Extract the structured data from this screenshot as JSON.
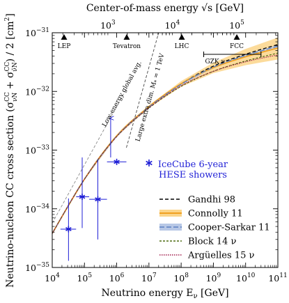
{
  "chart_data": {
    "type": "line",
    "xlabel": "Neutrino energy E",
    "xlabel_sub": "ν",
    "xlabel_unit": " [GeV]",
    "ylabel_pre": "Neutrino-nucleon CC cross section (σ",
    "ylabel_sup1": "CC",
    "ylabel_sub1": "νN",
    "ylabel_mid": " + σ",
    "ylabel_sup2": "CC",
    "ylabel_sub2": "ν̄N",
    "ylabel_post": ") / 2  [cm",
    "ylabel_exp": "2",
    "ylabel_close": "]",
    "top_xlabel_pre": "Center-of-mass energy ",
    "top_xlabel_sym": "√s",
    "top_xlabel_unit": " [GeV]",
    "x_scale": "log",
    "y_scale": "log",
    "xlim": [
      10000,
      100000000000
    ],
    "ylim": [
      1e-35,
      1e-31
    ],
    "x_ticks": [
      {
        "v": 10000,
        "m": "10",
        "e": "4"
      },
      {
        "v": 100000,
        "m": "10",
        "e": "5"
      },
      {
        "v": 1000000,
        "m": "10",
        "e": "6"
      },
      {
        "v": 10000000,
        "m": "10",
        "e": "7"
      },
      {
        "v": 100000000,
        "m": "10",
        "e": "8"
      },
      {
        "v": 1000000000,
        "m": "10",
        "e": "9"
      },
      {
        "v": 10000000000,
        "m": "10",
        "e": "10"
      },
      {
        "v": 100000000000,
        "m": "10",
        "e": "11"
      }
    ],
    "y_ticks": [
      {
        "v": 1e-35,
        "m": "10",
        "e": "−35"
      },
      {
        "v": 1e-34,
        "m": "10",
        "e": "−34"
      },
      {
        "v": 1e-33,
        "m": "10",
        "e": "−33"
      },
      {
        "v": 1e-32,
        "m": "10",
        "e": "−32"
      },
      {
        "v": 1e-31,
        "m": "10",
        "e": "−31"
      }
    ],
    "top_ticks": [
      {
        "sqrt_s": 1000,
        "m": "10",
        "e": "3"
      },
      {
        "sqrt_s": 10000,
        "m": "10",
        "e": "4"
      },
      {
        "sqrt_s": 100000,
        "m": "10",
        "e": "5"
      }
    ],
    "colliders": [
      {
        "name": "LEP",
        "sqrt_s": 209
      },
      {
        "name": "Tevatron",
        "sqrt_s": 1960
      },
      {
        "name": "LHC",
        "sqrt_s": 14000
      },
      {
        "name": "FCC",
        "sqrt_s": 100000
      }
    ],
    "gzk": {
      "label": "GZK ν",
      "e_min": 500000000,
      "e_max": 30000000000
    },
    "series": [
      {
        "name": "Gandhi 98",
        "color": "#000000",
        "dash": "5,3",
        "width": 1.3,
        "x": [
          10000,
          100000,
          1000000,
          10000000,
          100000000,
          1000000000,
          10000000000,
          100000000000
        ],
        "y": [
          3.8e-35,
          3.2e-34,
          1.75e-33,
          5.5e-33,
          1.35e-32,
          2.7e-32,
          4.3e-32,
          6.3e-32
        ]
      },
      {
        "name": "Connolly 11",
        "color": "#f0a020",
        "dash": "",
        "width": 1.8,
        "band_color": "#fbd58a",
        "x": [
          10000,
          100000,
          1000000,
          10000000,
          100000000,
          1000000000,
          10000000000,
          100000000000
        ],
        "y": [
          3.8e-35,
          3.2e-34,
          1.75e-33,
          5.5e-33,
          1.35e-32,
          2.55e-32,
          3.9e-32,
          5.5e-32
        ],
        "band_low": [
          3.7e-35,
          3.1e-34,
          1.7e-33,
          5.2e-33,
          1.2e-32,
          2.05e-32,
          2.8e-32,
          3.5e-32
        ],
        "band_high": [
          3.9e-35,
          3.3e-34,
          1.8e-33,
          5.8e-33,
          1.5e-32,
          3.1e-32,
          5.3e-32,
          8.3e-32
        ]
      },
      {
        "name": "Cooper-Sarkar 11",
        "color": "#5a7fc2",
        "dash": "7,3",
        "width": 1.3,
        "band_color": "#b8c8e6",
        "x": [
          10000,
          100000,
          1000000,
          10000000,
          100000000,
          1000000000,
          10000000000,
          100000000000
        ],
        "y": [
          3.8e-35,
          3.2e-34,
          1.72e-33,
          5.4e-33,
          1.32e-32,
          2.6e-32,
          4.1e-32,
          5.9e-32
        ],
        "band_low": [
          3.75e-35,
          3.15e-34,
          1.7e-33,
          5.3e-33,
          1.28e-32,
          2.5e-32,
          3.95e-32,
          5.6e-32
        ],
        "band_high": [
          3.85e-35,
          3.25e-34,
          1.74e-33,
          5.5e-33,
          1.36e-32,
          2.7e-32,
          4.3e-32,
          6.2e-32
        ]
      },
      {
        "name": "Block 14 ν",
        "color": "#4d6b10",
        "dash": "3,2",
        "width": 1.2,
        "x": [
          10000,
          100000,
          1000000,
          10000000,
          100000000,
          1000000000,
          10000000000,
          100000000000
        ],
        "y": [
          3.8e-35,
          3.2e-34,
          1.7e-33,
          5.2e-33,
          1.22e-32,
          2.2e-32,
          3.3e-32,
          4.5e-32
        ]
      },
      {
        "name": "Argüelles 15 ν",
        "color": "#a01a4a",
        "dash": "1.5,1.5",
        "width": 1.2,
        "x": [
          10000,
          100000,
          1000000,
          10000000,
          100000000,
          1000000000,
          10000000000,
          100000000000
        ],
        "y": [
          3.8e-35,
          3.2e-34,
          1.7e-33,
          5.25e-33,
          1.25e-32,
          2.2e-32,
          3.2e-32,
          4.2e-32
        ]
      }
    ],
    "reference_lines": [
      {
        "label": "Low-energy global avg.",
        "color": "#8a8a8a",
        "x": [
          10000,
          2000000
        ],
        "y": [
          5.7e-35,
          1.1e-32
        ]
      },
      {
        "label": "Large extra dim. M",
        "label_sub": "*",
        "label_post": " = 1 TeV",
        "color": "#444444",
        "x": [
          2000000,
          20000000
        ],
        "y": [
          1.1e-33,
          1e-31
        ]
      }
    ],
    "icecube": {
      "label_line1": "IceCube 6-year",
      "label_line2": "HESE showers",
      "color": "#1f1fd6",
      "points": [
        {
          "x": 32000,
          "y": 4.5e-35,
          "xlo": 18000,
          "xhi": 55000,
          "ylo": 1.3e-35,
          "yhi": 1.5e-34
        },
        {
          "x": 85000,
          "y": 1.6e-34,
          "xlo": 55000,
          "xhi": 140000,
          "ylo": 4.7e-35,
          "yhi": 7.5e-34
        },
        {
          "x": 260000,
          "y": 1.45e-34,
          "xlo": 140000,
          "xhi": 500000,
          "ylo": 3e-35,
          "yhi": 7e-34
        },
        {
          "x": 1000000,
          "y": 6.3e-34,
          "xlo": 500000,
          "xhi": 2000000,
          "ylo": null,
          "yhi": null
        },
        {
          "x": 650000,
          "y": null,
          "xlo": null,
          "xhi": null,
          "ylo": 7.5e-34,
          "yhi": 3.5e-33,
          "lower_limit": true
        }
      ]
    }
  }
}
